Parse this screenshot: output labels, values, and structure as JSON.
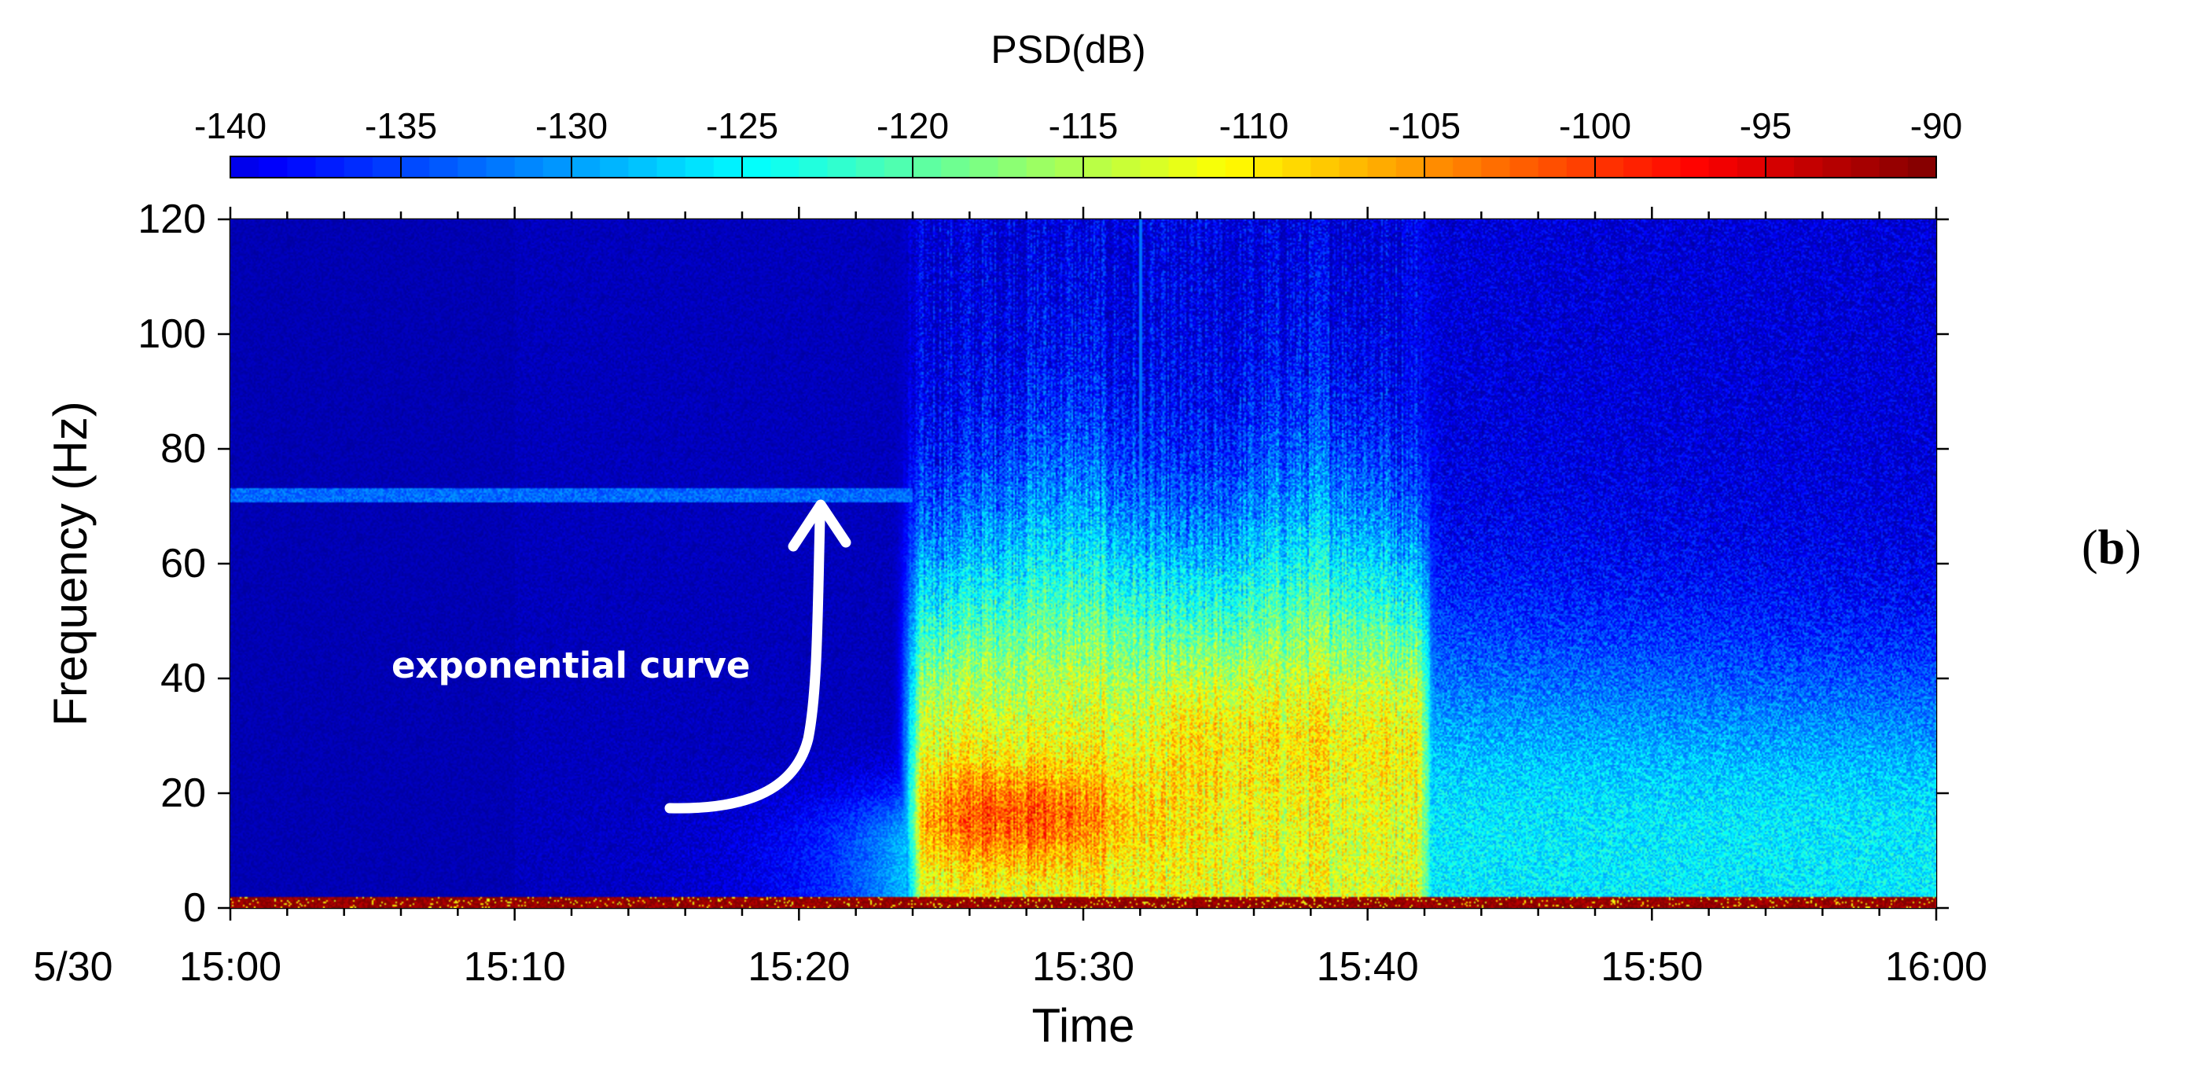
{
  "chart_data": {
    "type": "heatmap",
    "title": "",
    "colorbar": {
      "label": "PSD(dB)",
      "range": [
        -140,
        -90
      ],
      "ticks": [
        -140,
        -135,
        -130,
        -125,
        -120,
        -115,
        -110,
        -105,
        -100,
        -95,
        -90
      ],
      "tick_labels": [
        "-140",
        "-135",
        "-130",
        "-125",
        "-120",
        "-115",
        "-110",
        "-105",
        "-100",
        "-95",
        "-90"
      ],
      "colormap": "jet",
      "position": "top"
    },
    "xlabel": "Time",
    "ylabel": "Frequency (Hz)",
    "date_label": "5/30",
    "xlim_minutes": [
      0,
      60
    ],
    "x_ticks_minutes": [
      0,
      10,
      20,
      30,
      40,
      50,
      60
    ],
    "x_tick_labels": [
      "15:00",
      "15:10",
      "15:20",
      "15:30",
      "15:40",
      "15:50",
      "16:00"
    ],
    "ylim": [
      0,
      120
    ],
    "y_ticks": [
      0,
      20,
      40,
      60,
      80,
      100,
      120
    ],
    "y_tick_labels": [
      "0",
      "20",
      "40",
      "60",
      "80",
      "100",
      "120"
    ],
    "features": {
      "onset_minutes": 23.8,
      "strongest_band_minutes": [
        24,
        31
      ],
      "strongest_band_hz": [
        8,
        25
      ],
      "activity_end_minutes": 42.2,
      "persistent_line_hz": 72,
      "persistent_line_minutes": [
        0,
        24
      ],
      "low_freq_band_hz": [
        0,
        2
      ],
      "vertical_spike_minutes": 32
    },
    "annotation": {
      "text": "exponential curve",
      "arrow_color": "#ffffff"
    },
    "panel_label": "b"
  }
}
